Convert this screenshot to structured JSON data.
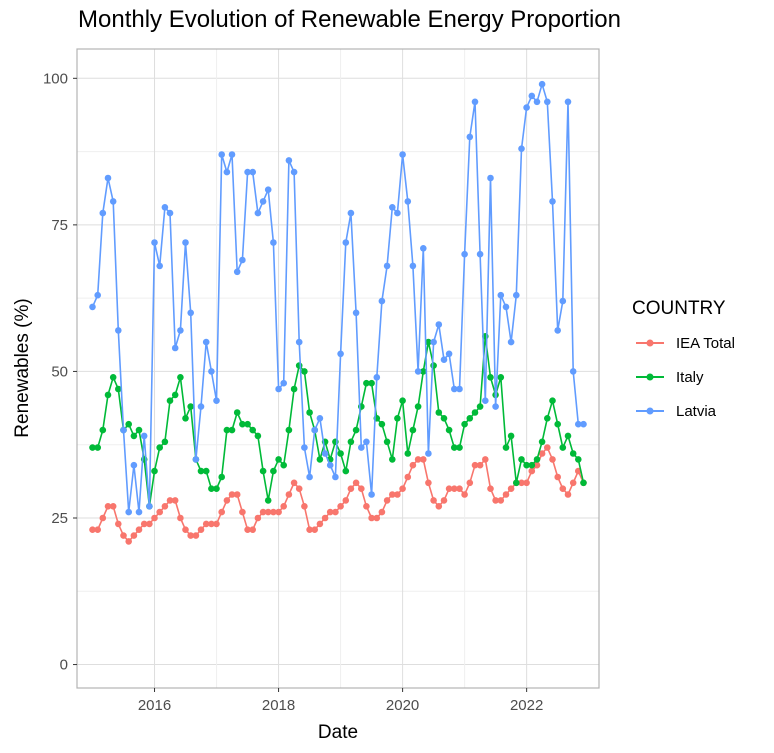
{
  "chart_data": {
    "type": "line",
    "title": "Monthly Evolution of Renewable Energy Proportion",
    "xlabel": "Date",
    "ylabel": "Renewables (%)",
    "x_ticks": [
      "2016",
      "2018",
      "2020",
      "2022"
    ],
    "y_ticks": [
      "0",
      "25",
      "50",
      "75",
      "100"
    ],
    "xlim": [
      "2014-10",
      "2023-03"
    ],
    "ylim": [
      -4,
      105
    ],
    "grid": true,
    "legend": {
      "title": "COUNTRY",
      "position": "right"
    },
    "x": [
      "2015-01",
      "2015-02",
      "2015-03",
      "2015-04",
      "2015-05",
      "2015-06",
      "2015-07",
      "2015-08",
      "2015-09",
      "2015-10",
      "2015-11",
      "2015-12",
      "2016-01",
      "2016-02",
      "2016-03",
      "2016-04",
      "2016-05",
      "2016-06",
      "2016-07",
      "2016-08",
      "2016-09",
      "2016-10",
      "2016-11",
      "2016-12",
      "2017-01",
      "2017-02",
      "2017-03",
      "2017-04",
      "2017-05",
      "2017-06",
      "2017-07",
      "2017-08",
      "2017-09",
      "2017-10",
      "2017-11",
      "2017-12",
      "2018-01",
      "2018-02",
      "2018-03",
      "2018-04",
      "2018-05",
      "2018-06",
      "2018-07",
      "2018-08",
      "2018-09",
      "2018-10",
      "2018-11",
      "2018-12",
      "2019-01",
      "2019-02",
      "2019-03",
      "2019-04",
      "2019-05",
      "2019-06",
      "2019-07",
      "2019-08",
      "2019-09",
      "2019-10",
      "2019-11",
      "2019-12",
      "2020-01",
      "2020-02",
      "2020-03",
      "2020-04",
      "2020-05",
      "2020-06",
      "2020-07",
      "2020-08",
      "2020-09",
      "2020-10",
      "2020-11",
      "2020-12",
      "2021-01",
      "2021-02",
      "2021-03",
      "2021-04",
      "2021-05",
      "2021-06",
      "2021-07",
      "2021-08",
      "2021-09",
      "2021-10",
      "2021-11",
      "2021-12",
      "2022-01",
      "2022-02",
      "2022-03",
      "2022-04",
      "2022-05",
      "2022-06",
      "2022-07",
      "2022-08",
      "2022-09",
      "2022-10",
      "2022-11",
      "2022-12"
    ],
    "series": [
      {
        "name": "IEA Total",
        "color": "#F8766D",
        "values": [
          23,
          23,
          25,
          27,
          27,
          24,
          22,
          21,
          22,
          23,
          24,
          24,
          25,
          26,
          27,
          28,
          28,
          25,
          23,
          22,
          22,
          23,
          24,
          24,
          24,
          26,
          28,
          29,
          29,
          26,
          23,
          23,
          25,
          26,
          26,
          26,
          26,
          27,
          29,
          31,
          30,
          27,
          23,
          23,
          24,
          25,
          26,
          26,
          27,
          28,
          30,
          31,
          30,
          27,
          25,
          25,
          26,
          28,
          29,
          29,
          30,
          32,
          34,
          35,
          35,
          31,
          28,
          27,
          28,
          30,
          30,
          30,
          29,
          31,
          34,
          34,
          35,
          30,
          28,
          28,
          29,
          30,
          31,
          31,
          31,
          33,
          34,
          36,
          37,
          35,
          32,
          30,
          29,
          31,
          33,
          31
        ]
      },
      {
        "name": "Italy",
        "color": "#00BA38",
        "values": [
          37,
          37,
          40,
          46,
          49,
          47,
          40,
          41,
          39,
          40,
          35,
          27,
          33,
          37,
          38,
          45,
          46,
          49,
          42,
          44,
          35,
          33,
          33,
          30,
          30,
          32,
          40,
          40,
          43,
          41,
          41,
          40,
          39,
          33,
          28,
          33,
          35,
          34,
          40,
          47,
          51,
          50,
          43,
          40,
          35,
          38,
          35,
          38,
          36,
          33,
          38,
          40,
          44,
          48,
          48,
          42,
          41,
          38,
          35,
          42,
          45,
          36,
          40,
          44,
          50,
          55,
          51,
          43,
          42,
          40,
          37,
          37,
          41,
          42,
          43,
          44,
          56,
          49,
          46,
          49,
          37,
          39,
          31,
          35,
          34,
          34,
          35,
          38,
          42,
          45,
          41,
          37,
          39,
          36,
          35,
          31
        ]
      },
      {
        "name": "Latvia",
        "color": "#619CFF",
        "values": [
          61,
          63,
          77,
          83,
          79,
          57,
          40,
          26,
          34,
          26,
          39,
          27,
          72,
          68,
          78,
          77,
          54,
          57,
          72,
          60,
          35,
          44,
          55,
          50,
          45,
          87,
          84,
          87,
          67,
          69,
          84,
          84,
          77,
          79,
          81,
          72,
          47,
          48,
          86,
          84,
          55,
          37,
          32,
          40,
          42,
          36,
          34,
          32,
          53,
          72,
          77,
          60,
          37,
          38,
          29,
          49,
          62,
          68,
          78,
          77,
          87,
          79,
          68,
          50,
          71,
          36,
          55,
          58,
          52,
          53,
          47,
          47,
          70,
          90,
          96,
          70,
          45,
          83,
          44,
          63,
          61,
          55,
          63,
          88,
          95,
          97,
          96,
          99,
          96,
          79,
          57,
          62,
          96,
          50,
          41,
          41
        ]
      }
    ]
  }
}
